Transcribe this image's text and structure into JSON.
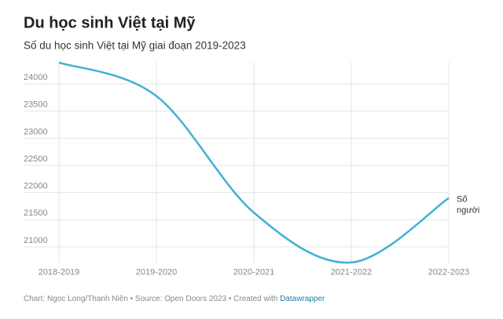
{
  "chart_data": {
    "type": "line",
    "title": "Du học sinh Việt tại Mỹ",
    "subtitle": "Số du học sinh Việt tại Mỹ giai đoạn 2019-2023",
    "categories": [
      "2018-2019",
      "2019-2020",
      "2020-2021",
      "2021-2022",
      "2022-2023"
    ],
    "series": [
      {
        "name": "Số người",
        "color": "#41b0d4",
        "values": [
          24392,
          23777,
          21631,
          20713,
          21900
        ]
      }
    ],
    "ylim": [
      20700,
      24400
    ],
    "yticks": [
      21000,
      21500,
      22000,
      22500,
      23000,
      23500,
      24000
    ],
    "grid": true,
    "footer": {
      "text": "Chart: Ngọc Long/Thanh Niên • Source: Open Doors 2023 • Created with",
      "link": "Datawrapper"
    }
  }
}
